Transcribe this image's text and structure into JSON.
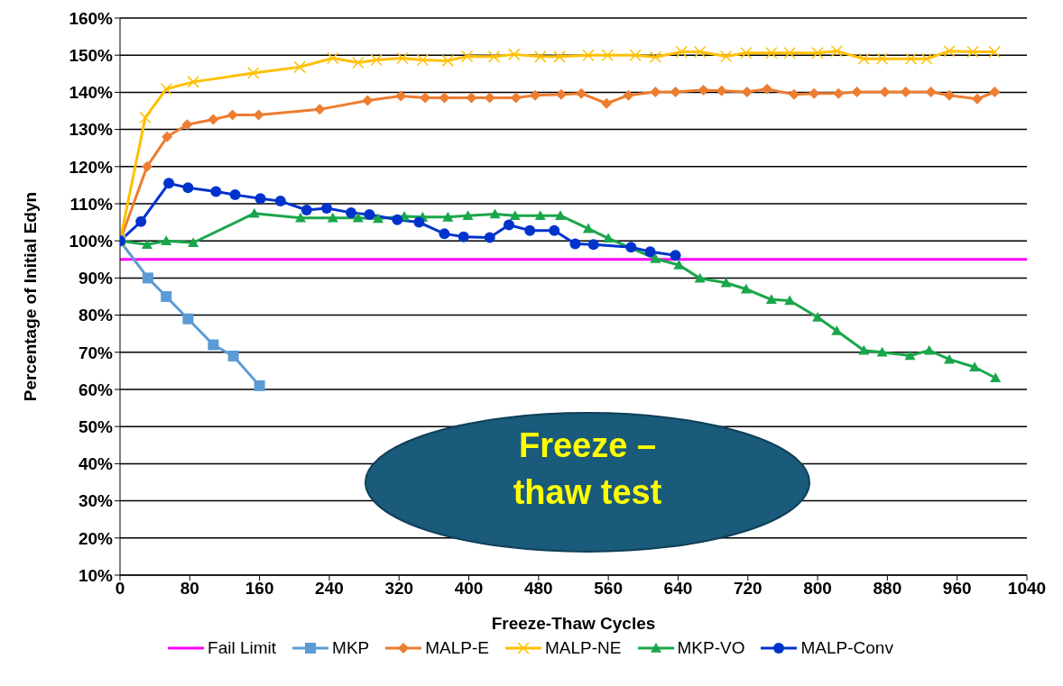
{
  "chart_data": {
    "type": "line",
    "xlabel": "Freeze-Thaw Cycles",
    "ylabel": "Percentage of Initial Edyn",
    "xlim": [
      0,
      1040
    ],
    "xticks": [
      0,
      80,
      160,
      240,
      320,
      400,
      480,
      560,
      640,
      720,
      800,
      880,
      960,
      1040
    ],
    "ylim": [
      10,
      160
    ],
    "yticks": [
      {
        "value": 10,
        "label": "10%"
      },
      {
        "value": 20,
        "label": "20%"
      },
      {
        "value": 30,
        "label": "30%"
      },
      {
        "value": 40,
        "label": "40%"
      },
      {
        "value": 50,
        "label": "50%"
      },
      {
        "value": 60,
        "label": "60%"
      },
      {
        "value": 70,
        "label": "70%"
      },
      {
        "value": 80,
        "label": "80%"
      },
      {
        "value": 90,
        "label": "90%"
      },
      {
        "value": 100,
        "label": "100%"
      },
      {
        "value": 110,
        "label": "110%"
      },
      {
        "value": 120,
        "label": "120%"
      },
      {
        "value": 130,
        "label": "130%"
      },
      {
        "value": 140,
        "label": "140%"
      },
      {
        "value": 150,
        "label": "150%"
      },
      {
        "value": 160,
        "label": "160%"
      }
    ],
    "grid": "y",
    "legend": "bottom",
    "ref_lines": [
      {
        "axis": "y",
        "value": 95,
        "label": "Fail Limit",
        "color": "#ff00ff"
      }
    ],
    "annotations": [
      "Freeze – thaw test"
    ],
    "series": [
      {
        "name": "MKP",
        "color": "#5b9bd5",
        "marker": "square",
        "x": [
          0,
          32,
          53,
          78,
          107,
          130,
          160
        ],
        "values": [
          100,
          90,
          85,
          79,
          72,
          69,
          61
        ]
      },
      {
        "name": "MALP-E",
        "color": "#ed7d31",
        "marker": "diamond",
        "x": [
          0,
          31,
          54,
          77,
          107,
          129,
          159,
          229,
          284,
          322,
          350,
          372,
          403,
          424,
          454,
          476,
          506,
          529,
          558,
          583,
          614,
          637,
          669,
          690,
          719,
          742,
          773,
          796,
          824,
          845,
          877,
          901,
          930,
          951,
          983,
          1003
        ],
        "values": [
          100,
          120,
          128,
          131.3,
          132.7,
          133.9,
          133.9,
          135.4,
          137.8,
          139,
          138.5,
          138.5,
          138.5,
          138.5,
          138.5,
          139.2,
          139.4,
          139.7,
          137,
          139.2,
          140.1,
          140.1,
          140.6,
          140.4,
          140.1,
          140.9,
          139.4,
          139.7,
          139.7,
          140.1,
          140.1,
          140.1,
          140.1,
          139.2,
          138.2,
          140.1
        ]
      },
      {
        "name": "MALP-NE",
        "color": "#ffc000",
        "marker": "cross",
        "x": [
          0,
          29,
          53,
          84,
          153,
          206,
          244,
          273,
          294,
          324,
          347,
          376,
          398,
          429,
          452,
          482,
          504,
          537,
          559,
          591,
          614,
          644,
          665,
          695,
          718,
          747,
          768,
          800,
          822,
          853,
          874,
          907,
          925,
          951,
          978,
          1003
        ],
        "values": [
          100,
          133.2,
          140.9,
          142.8,
          145.2,
          146.8,
          149.2,
          148,
          148.7,
          149.2,
          148.7,
          148.5,
          149.7,
          149.6,
          150.2,
          149.6,
          149.6,
          150,
          150,
          150,
          149.5,
          150.9,
          150.9,
          149.7,
          150.6,
          150.6,
          150.6,
          150.6,
          151.1,
          149,
          149,
          149,
          149,
          151.1,
          150.9,
          150.9
        ]
      },
      {
        "name": "MKP-VO",
        "color": "#1aa64a",
        "marker": "triangle",
        "x": [
          0,
          31,
          53,
          84,
          154,
          207,
          244,
          273,
          296,
          326,
          347,
          376,
          399,
          430,
          453,
          482,
          505,
          537,
          560,
          614,
          641,
          665,
          695,
          718,
          747,
          768,
          800,
          822,
          853,
          874,
          906,
          928,
          951,
          980,
          1004
        ],
        "values": [
          100,
          99,
          100,
          99.5,
          107.4,
          106.2,
          106.2,
          106.2,
          106,
          106.6,
          106.4,
          106.4,
          106.8,
          107.2,
          106.8,
          106.8,
          106.8,
          103.3,
          100.7,
          95.2,
          93.5,
          89.9,
          88.7,
          87,
          84.2,
          83.9,
          79.4,
          75.8,
          70.5,
          70,
          69.1,
          70.5,
          68.1,
          66,
          63.1
        ]
      },
      {
        "name": "MALP-Conv",
        "color": "#0033cc",
        "marker": "circle",
        "x": [
          0,
          24,
          56,
          78,
          110,
          132,
          161,
          184,
          214,
          237,
          265,
          286,
          318,
          343,
          372,
          394,
          424,
          446,
          470,
          498,
          522,
          543,
          586,
          608,
          637
        ],
        "values": [
          100,
          105.2,
          115.5,
          114.3,
          113.3,
          112.4,
          111.4,
          110.7,
          108.3,
          108.8,
          107.6,
          107.1,
          105.7,
          105,
          101.9,
          101.1,
          100.9,
          104.3,
          102.8,
          102.8,
          99.2,
          99,
          98.3,
          97.1,
          96.1
        ]
      }
    ]
  }
}
